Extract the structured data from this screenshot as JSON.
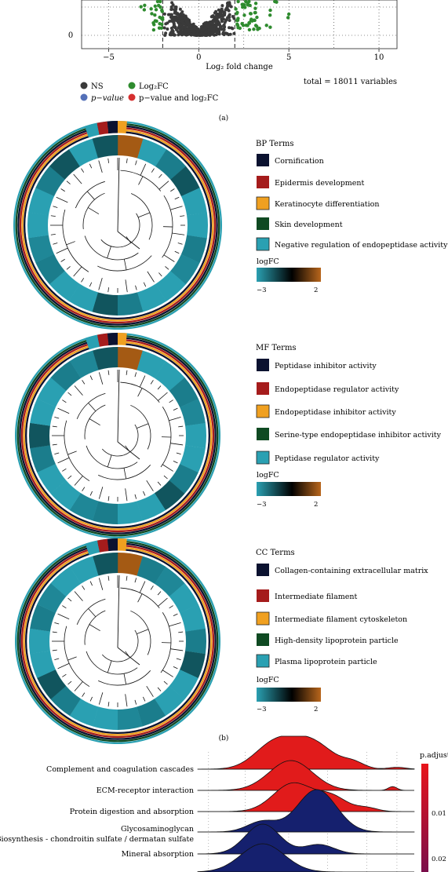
{
  "panel_labels": {
    "a": "(a)",
    "b": "(b)"
  },
  "colors": {
    "ns": "#3a3a3a",
    "pvalue": "#5470b8",
    "log2fc": "#2e8b2e",
    "both": "#d62f2f",
    "ring_teal": "#2aa0b2",
    "ring_dark_teal": "#11555e",
    "ring_mid_teal": "#1b7d8c",
    "term1": "#0b1230",
    "term2": "#a51c1c",
    "term3": "#f0a020",
    "term4": "#0f4a22",
    "term5": "#2aa0b2",
    "ridge_red": "#e11b1b",
    "ridge_blue": "#15206e",
    "up_orange": "#a45a14"
  },
  "chart_data": [
    {
      "type": "scatter",
      "panel": "a",
      "xlabel": "Log₂ fold change",
      "xlim": [
        -6.5,
        11
      ],
      "xticks": [
        -5,
        0,
        5,
        10
      ],
      "yticks": [
        0
      ],
      "vlines": [
        -2,
        2
      ],
      "grid": true,
      "legend": [
        {
          "key": "ns",
          "label": "NS"
        },
        {
          "key": "log2fc",
          "label": "Log₂FC"
        },
        {
          "key": "pvalue",
          "label": "p−value"
        },
        {
          "key": "both",
          "label": "p−value and log₂FC"
        }
      ],
      "caption": "total = 18011 variables"
    },
    {
      "type": "heatmap",
      "panel": "b",
      "subtype": "circular-dendrogram",
      "title": "BP Terms",
      "terms": [
        "Cornification",
        "Epidermis development",
        "Keratinocyte differentiation",
        "Skin development",
        "Negative regulation of endopeptidase activity"
      ],
      "colorbar": {
        "label": "logFC",
        "min": -3,
        "max": 2,
        "min_label": "−3",
        "max_label": "2"
      }
    },
    {
      "type": "heatmap",
      "panel": "b",
      "subtype": "circular-dendrogram",
      "title": "MF Terms",
      "terms": [
        "Peptidase inhibitor activity",
        "Endopeptidase regulator activity",
        "Endopeptidase inhibitor activity",
        "Serine-type endopeptidase inhibitor activity",
        "Peptidase regulator activity"
      ],
      "colorbar": {
        "label": "logFC",
        "min": -3,
        "max": 2,
        "min_label": "−3",
        "max_label": "2"
      }
    },
    {
      "type": "heatmap",
      "panel": "b",
      "subtype": "circular-dendrogram",
      "title": "CC Terms",
      "terms": [
        "Collagen-containing extracellular matrix",
        "Intermediate filament",
        "Intermediate filament cytoskeleton",
        "High-density lipoprotein particle",
        "Plasma lipoprotein particle"
      ],
      "colorbar": {
        "label": "logFC",
        "min": -3,
        "max": 2,
        "min_label": "−3",
        "max_label": "2"
      }
    },
    {
      "type": "area",
      "panel": "c",
      "subtype": "ridgeline",
      "categories": [
        "Complement and coagulation cascades",
        "ECM-receptor interaction",
        "Protein digestion and absorption",
        "Glycosaminoglycan",
        "Biosynthesis - chondroitin sulfate / dermatan sulfate",
        "Mineral absorption"
      ],
      "ridges": [
        {
          "label": "Complement and coagulation cascades",
          "fill": "red",
          "peaks": [
            [
              0.35,
              0.75,
              0.09
            ],
            [
              0.52,
              0.88,
              0.1
            ],
            [
              0.72,
              0.18,
              0.05
            ],
            [
              0.92,
              0.06,
              0.04
            ]
          ]
        },
        {
          "label": "ECM-receptor interaction",
          "fill": "red",
          "peaks": [
            [
              0.43,
              0.95,
              0.1
            ],
            [
              0.9,
              0.12,
              0.02
            ]
          ]
        },
        {
          "label": "Protein digestion and absorption",
          "fill": "red",
          "peaks": [
            [
              0.44,
              0.9,
              0.09
            ],
            [
              0.62,
              0.45,
              0.07
            ],
            [
              0.78,
              0.12,
              0.05
            ]
          ]
        },
        {
          "label": "Glycosaminoglycan Biosynthesis",
          "fill": "blue",
          "peaks": [
            [
              0.55,
              1.0,
              0.09
            ],
            [
              0.3,
              0.25,
              0.07
            ]
          ]
        },
        {
          "label": "Mineral absorption",
          "fill": "blue",
          "peaks": [
            [
              0.3,
              0.95,
              0.08
            ],
            [
              0.56,
              0.3,
              0.07
            ]
          ]
        },
        {
          "label": "",
          "fill": "blue",
          "peaks": [
            [
              0.3,
              0.9,
              0.1
            ]
          ]
        }
      ],
      "colorbar": {
        "label": "p.adjust",
        "ticks": [
          "0.01",
          "0.02"
        ]
      }
    }
  ]
}
